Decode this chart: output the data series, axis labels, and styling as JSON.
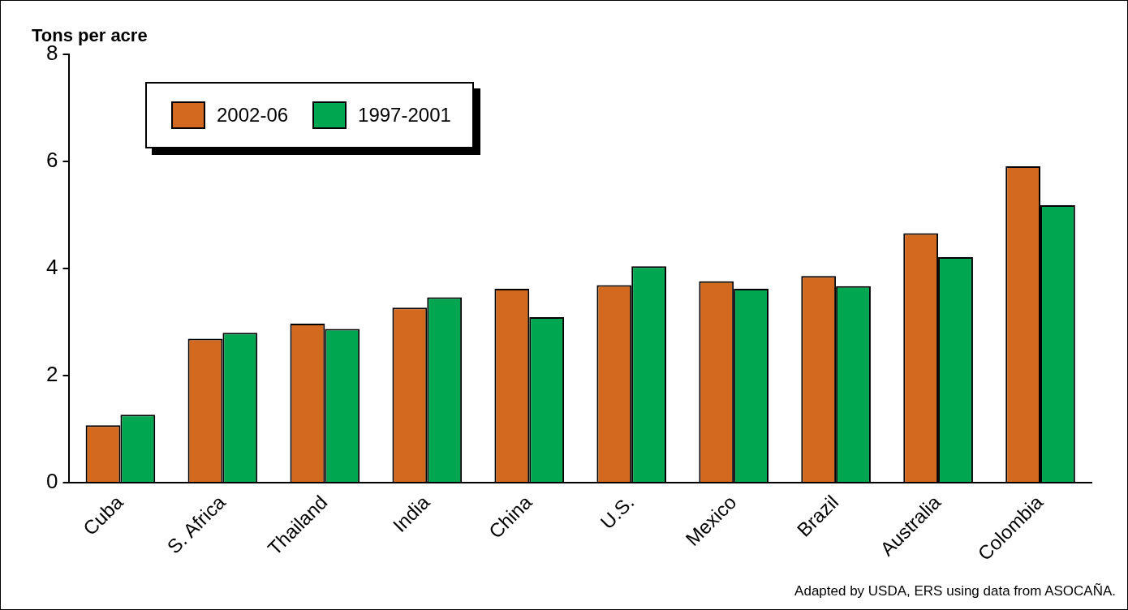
{
  "chart_data": {
    "type": "bar",
    "title": "Tons per acre",
    "categories": [
      "Cuba",
      "S. Africa",
      "Thailand",
      "India",
      "China",
      "U.S.",
      "Mexico",
      "Brazil",
      "Australia",
      "Colombia"
    ],
    "series": [
      {
        "name": "2002-06",
        "color": "#d2691e",
        "values": [
          1.07,
          2.69,
          2.97,
          3.27,
          3.62,
          3.69,
          3.76,
          3.86,
          4.66,
          5.91
        ]
      },
      {
        "name": "1997-2001",
        "color": "#00a650",
        "values": [
          1.27,
          2.8,
          2.87,
          3.46,
          3.09,
          4.04,
          3.62,
          3.67,
          4.21,
          5.18
        ]
      }
    ],
    "ylim": [
      0,
      8
    ],
    "yticks": [
      0,
      2,
      4,
      6,
      8
    ],
    "legend": "top left",
    "annotations": [
      "Adapted by USDA, ERS using data from ASOCAÑA."
    ]
  }
}
